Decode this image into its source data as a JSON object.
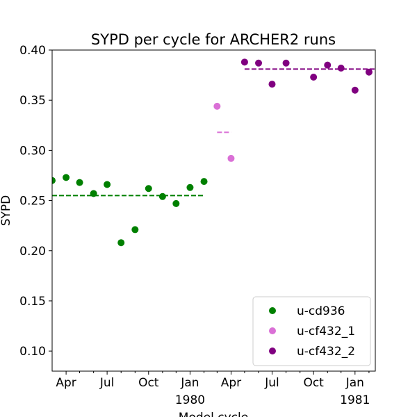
{
  "chart_data": {
    "type": "scatter",
    "title": "SYPD per cycle for ARCHER2 runs",
    "xlabel": "Model cycle",
    "ylabel": "SYPD",
    "ylim": [
      0.08,
      0.4
    ],
    "xlim": [
      "1979-03-01",
      "1981-02-15"
    ],
    "grid": false,
    "legend_position": "lower-right",
    "y_ticks": [
      "0.10",
      "0.15",
      "0.20",
      "0.25",
      "0.30",
      "0.35",
      "0.40"
    ],
    "x_ticks": [
      {
        "date": "1979-04-01",
        "label": "Apr",
        "sublabel": ""
      },
      {
        "date": "1979-07-01",
        "label": "Jul",
        "sublabel": ""
      },
      {
        "date": "1979-10-01",
        "label": "Oct",
        "sublabel": ""
      },
      {
        "date": "1980-01-01",
        "label": "Jan",
        "sublabel": "1980"
      },
      {
        "date": "1980-04-01",
        "label": "Apr",
        "sublabel": ""
      },
      {
        "date": "1980-07-01",
        "label": "Jul",
        "sublabel": ""
      },
      {
        "date": "1980-10-01",
        "label": "Oct",
        "sublabel": ""
      },
      {
        "date": "1981-01-01",
        "label": "Jan",
        "sublabel": "1981"
      }
    ],
    "x_minor_ticks": [
      "1979-05-01",
      "1979-06-01",
      "1979-08-01",
      "1979-09-01",
      "1979-11-01",
      "1979-12-01",
      "1980-02-01",
      "1980-03-01",
      "1980-05-01",
      "1980-06-01",
      "1980-08-01",
      "1980-09-01",
      "1980-11-01",
      "1980-12-01",
      "1981-02-01"
    ],
    "series": [
      {
        "name": "u-cd936",
        "color": "#008000",
        "mean": 0.255,
        "points": [
          {
            "x": "1979-03-01",
            "y": 0.27
          },
          {
            "x": "1979-04-01",
            "y": 0.273
          },
          {
            "x": "1979-05-01",
            "y": 0.268
          },
          {
            "x": "1979-06-01",
            "y": 0.257
          },
          {
            "x": "1979-07-01",
            "y": 0.266
          },
          {
            "x": "1979-08-01",
            "y": 0.208
          },
          {
            "x": "1979-09-01",
            "y": 0.221
          },
          {
            "x": "1979-10-01",
            "y": 0.262
          },
          {
            "x": "1979-11-01",
            "y": 0.254
          },
          {
            "x": "1979-12-01",
            "y": 0.247
          },
          {
            "x": "1980-01-01",
            "y": 0.263
          },
          {
            "x": "1980-02-01",
            "y": 0.269
          }
        ],
        "mean_range": [
          "1979-03-01",
          "1980-02-01"
        ]
      },
      {
        "name": "u-cf432_1",
        "color": "#da70d6",
        "mean": 0.318,
        "points": [
          {
            "x": "1980-03-01",
            "y": 0.344
          },
          {
            "x": "1980-04-01",
            "y": 0.292
          }
        ],
        "mean_range": [
          "1980-03-01",
          "1980-04-01"
        ]
      },
      {
        "name": "u-cf432_2",
        "color": "#800080",
        "mean": 0.381,
        "points": [
          {
            "x": "1980-05-01",
            "y": 0.388
          },
          {
            "x": "1980-06-01",
            "y": 0.387
          },
          {
            "x": "1980-07-01",
            "y": 0.366
          },
          {
            "x": "1980-08-01",
            "y": 0.387
          },
          {
            "x": "1980-10-01",
            "y": 0.373
          },
          {
            "x": "1980-11-01",
            "y": 0.385
          },
          {
            "x": "1980-12-01",
            "y": 0.382
          },
          {
            "x": "1981-01-01",
            "y": 0.36
          },
          {
            "x": "1981-02-01",
            "y": 0.378
          }
        ],
        "mean_range": [
          "1980-05-01",
          "1981-02-15"
        ]
      }
    ]
  }
}
